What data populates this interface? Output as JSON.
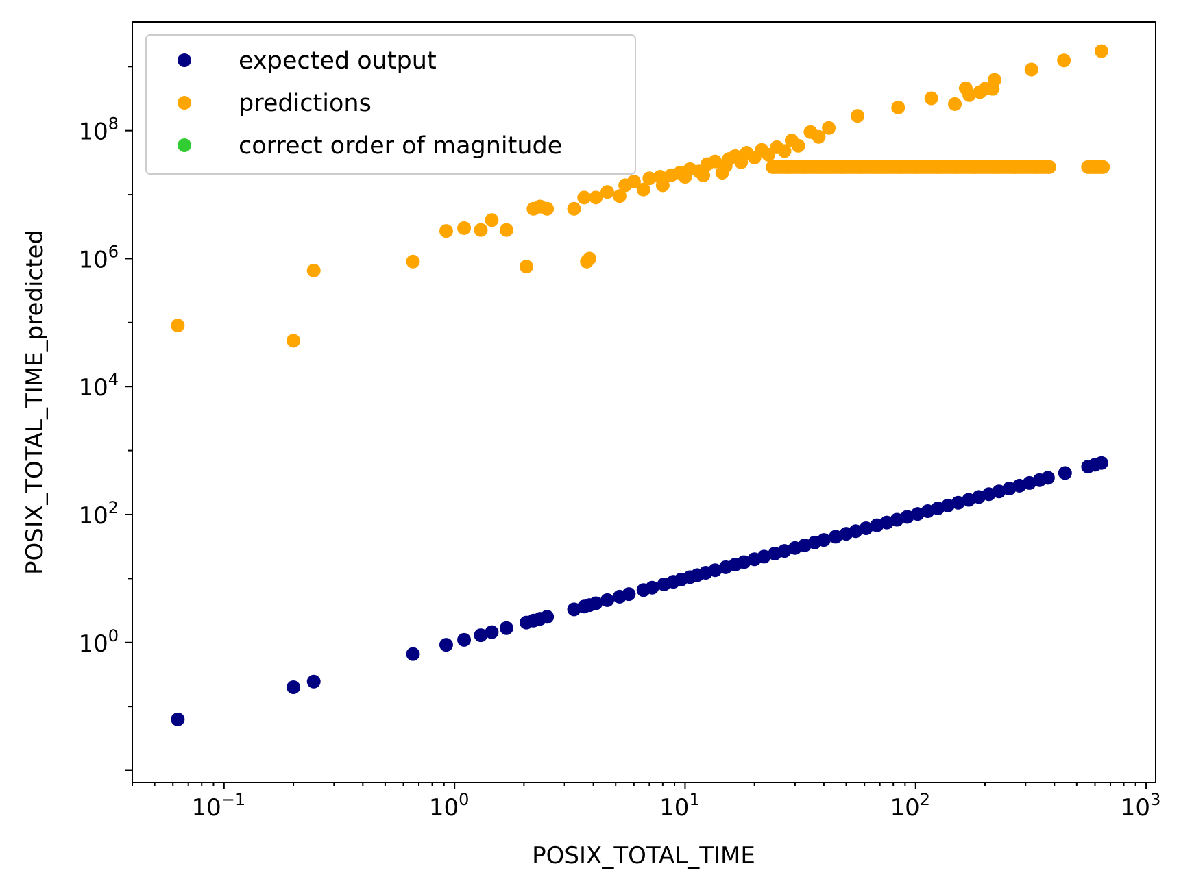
{
  "chart_data": {
    "type": "scatter",
    "xlabel": "POSIX_TOTAL_TIME",
    "ylabel": "POSIX_TOTAL_TIME_predicted",
    "xscale": "log",
    "yscale": "log",
    "xlim": [
      0.04,
      1100
    ],
    "ylim": [
      0.0065,
      5000000000
    ],
    "grid": false,
    "legend_position": "top-left",
    "x_ticks": [
      {
        "base": "10",
        "exp": "−1"
      },
      {
        "base": "10",
        "exp": "0"
      },
      {
        "base": "10",
        "exp": "1"
      },
      {
        "base": "10",
        "exp": "2"
      },
      {
        "base": "10",
        "exp": "3"
      }
    ],
    "y_ticks": [
      {
        "base": "10",
        "exp": "0"
      },
      {
        "base": "10",
        "exp": "2"
      },
      {
        "base": "10",
        "exp": "4"
      },
      {
        "base": "10",
        "exp": "6"
      },
      {
        "base": "10",
        "exp": "8"
      }
    ],
    "series": [
      {
        "name": "expected output",
        "color": "#000080",
        "points": [
          [
            0.063,
            0.063
          ],
          [
            0.2,
            0.2
          ],
          [
            0.245,
            0.245
          ],
          [
            0.66,
            0.66
          ],
          [
            0.92,
            0.92
          ],
          [
            1.1,
            1.1
          ],
          [
            1.3,
            1.3
          ],
          [
            1.45,
            1.45
          ],
          [
            1.68,
            1.68
          ],
          [
            2.05,
            2.05
          ],
          [
            2.2,
            2.2
          ],
          [
            2.35,
            2.35
          ],
          [
            2.52,
            2.52
          ],
          [
            3.3,
            3.3
          ],
          [
            3.65,
            3.65
          ],
          [
            3.85,
            3.85
          ],
          [
            4.1,
            4.1
          ],
          [
            4.6,
            4.6
          ],
          [
            5.2,
            5.2
          ],
          [
            5.7,
            5.7
          ],
          [
            6.6,
            6.6
          ],
          [
            7.2,
            7.2
          ],
          [
            8.1,
            8.1
          ],
          [
            8.9,
            8.9
          ],
          [
            9.6,
            9.6
          ],
          [
            10.5,
            10.5
          ],
          [
            11.3,
            11.3
          ],
          [
            12.3,
            12.3
          ],
          [
            13.5,
            13.5
          ],
          [
            15,
            15
          ],
          [
            16.5,
            16.5
          ],
          [
            18,
            18
          ],
          [
            20,
            20
          ],
          [
            22,
            22
          ],
          [
            24.5,
            24.5
          ],
          [
            27,
            27
          ],
          [
            30,
            30
          ],
          [
            33,
            33
          ],
          [
            36.5,
            36.5
          ],
          [
            40,
            40
          ],
          [
            45,
            45
          ],
          [
            50,
            50
          ],
          [
            55,
            55
          ],
          [
            61,
            61
          ],
          [
            68,
            68
          ],
          [
            75,
            75
          ],
          [
            83,
            83
          ],
          [
            92,
            92
          ],
          [
            102,
            102
          ],
          [
            113,
            113
          ],
          [
            125,
            125
          ],
          [
            138,
            138
          ],
          [
            153,
            153
          ],
          [
            170,
            170
          ],
          [
            188,
            188
          ],
          [
            208,
            208
          ],
          [
            230,
            230
          ],
          [
            255,
            255
          ],
          [
            282,
            282
          ],
          [
            312,
            312
          ],
          [
            345,
            345
          ],
          [
            375,
            375
          ],
          [
            445,
            445
          ],
          [
            560,
            560
          ],
          [
            600,
            600
          ],
          [
            640,
            640
          ]
        ]
      },
      {
        "name": "predictions",
        "color": "#FFA500",
        "points": [
          [
            0.063,
            90000
          ],
          [
            0.2,
            52000
          ],
          [
            0.245,
            650000
          ],
          [
            0.66,
            900000
          ],
          [
            0.92,
            2700000
          ],
          [
            1.1,
            3000000
          ],
          [
            1.3,
            2800000
          ],
          [
            1.45,
            4000000
          ],
          [
            1.68,
            2800000
          ],
          [
            2.05,
            750000
          ],
          [
            2.2,
            6000000
          ],
          [
            2.35,
            6500000
          ],
          [
            2.52,
            6000000
          ],
          [
            3.3,
            6000000
          ],
          [
            3.65,
            9000000
          ],
          [
            3.75,
            900000
          ],
          [
            3.85,
            1000000
          ],
          [
            4.1,
            9000000
          ],
          [
            4.6,
            11000000
          ],
          [
            5.2,
            9500000
          ],
          [
            5.5,
            14000000
          ],
          [
            6.0,
            16000000
          ],
          [
            6.6,
            12000000
          ],
          [
            7.0,
            18000000
          ],
          [
            7.8,
            19000000
          ],
          [
            8.0,
            14000000
          ],
          [
            8.7,
            20000000
          ],
          [
            9.5,
            22000000
          ],
          [
            10.0,
            19000000
          ],
          [
            10.5,
            25000000
          ],
          [
            11.5,
            23000000
          ],
          [
            12.0,
            20000000
          ],
          [
            12.5,
            30000000
          ],
          [
            13.5,
            33000000
          ],
          [
            14.5,
            22000000
          ],
          [
            15,
            28000000
          ],
          [
            15.5,
            36000000
          ],
          [
            16.5,
            40000000
          ],
          [
            17.5,
            32000000
          ],
          [
            18.5,
            45000000
          ],
          [
            20,
            38000000
          ],
          [
            21.5,
            50000000
          ],
          [
            23,
            42000000
          ],
          [
            25,
            55000000
          ],
          [
            27,
            48000000
          ],
          [
            29,
            70000000
          ],
          [
            31,
            58000000
          ],
          [
            35,
            95000000
          ],
          [
            38,
            80000000
          ],
          [
            42,
            110000000
          ],
          [
            56,
            170000000
          ],
          [
            84,
            230000000
          ],
          [
            117,
            320000000
          ],
          [
            148,
            260000000
          ],
          [
            165,
            460000000
          ],
          [
            171,
            360000000
          ],
          [
            190,
            400000000
          ],
          [
            200,
            450000000
          ],
          [
            216,
            450000000
          ],
          [
            220,
            620000000
          ],
          [
            318,
            900000000
          ],
          [
            440,
            1250000000
          ],
          [
            640,
            1750000000
          ],
          [
            24,
            27000000
          ],
          [
            28,
            27000000
          ],
          [
            33,
            27000000
          ],
          [
            40,
            27000000
          ],
          [
            48,
            27000000
          ],
          [
            58,
            27000000
          ],
          [
            70,
            27000000
          ],
          [
            85,
            27000000
          ],
          [
            100,
            27000000
          ],
          [
            125,
            27000000
          ],
          [
            150,
            27000000
          ],
          [
            180,
            27000000
          ],
          [
            220,
            27000000
          ],
          [
            270,
            27000000
          ],
          [
            330,
            27000000
          ],
          [
            380,
            27000000
          ],
          [
            560,
            27000000
          ],
          [
            600,
            27000000
          ],
          [
            640,
            27000000
          ]
        ],
        "lines": [
          {
            "x_start": 24,
            "x_end": 380,
            "y": 27000000
          },
          {
            "x_start": 560,
            "x_end": 650,
            "y": 27000000
          }
        ]
      },
      {
        "name": "correct order of magnitude",
        "color": "#32CD32",
        "points": []
      }
    ]
  }
}
